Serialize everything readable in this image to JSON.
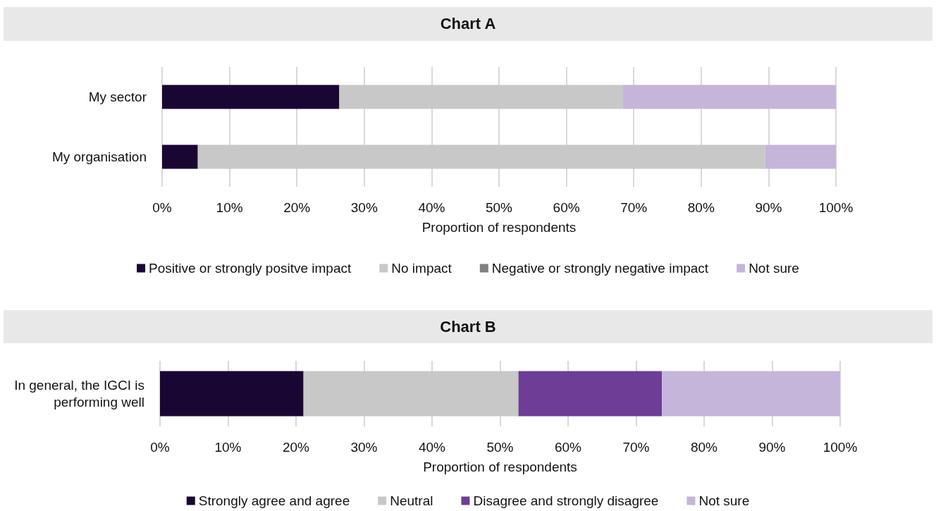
{
  "chart_data": [
    {
      "type": "bar",
      "title": "Chart A",
      "orientation": "horizontal",
      "stacked": true,
      "categories": [
        "My sector",
        "My organisation"
      ],
      "xlabel": "Proportion of respondents",
      "xlim": [
        0,
        100
      ],
      "xticks": [
        {
          "value": 0,
          "label": "0%"
        },
        {
          "value": 10,
          "label": "10%"
        },
        {
          "value": 20,
          "label": "20%"
        },
        {
          "value": 30,
          "label": "30%"
        },
        {
          "value": 40,
          "label": "40%"
        },
        {
          "value": 50,
          "label": "50%"
        },
        {
          "value": 60,
          "label": "60%"
        },
        {
          "value": 70,
          "label": "70%"
        },
        {
          "value": 80,
          "label": "80%"
        },
        {
          "value": 90,
          "label": "90%"
        },
        {
          "value": 100,
          "label": "100%"
        }
      ],
      "grid": "x",
      "legend": "bottom",
      "series": [
        {
          "name": "Positive or strongly positve impact",
          "color": "#1a0633",
          "values": [
            26.3,
            5.3
          ]
        },
        {
          "name": "No impact",
          "color": "#c8c8c8",
          "values": [
            42.1,
            84.2
          ]
        },
        {
          "name": "Negative or strongly negative impact",
          "color": "#808080",
          "values": [
            0,
            0
          ]
        },
        {
          "name": "Not sure",
          "color": "#c5b5da",
          "values": [
            31.6,
            10.5
          ]
        }
      ]
    },
    {
      "type": "bar",
      "title": "Chart B",
      "orientation": "horizontal",
      "stacked": true,
      "categories": [
        "In general, the IGCI is performing well"
      ],
      "xlabel": "Proportion of respondents",
      "xlim": [
        0,
        100
      ],
      "xticks": [
        {
          "value": 0,
          "label": "0%"
        },
        {
          "value": 10,
          "label": "10%"
        },
        {
          "value": 20,
          "label": "20%"
        },
        {
          "value": 30,
          "label": "30%"
        },
        {
          "value": 40,
          "label": "40%"
        },
        {
          "value": 50,
          "label": "50%"
        },
        {
          "value": 60,
          "label": "60%"
        },
        {
          "value": 70,
          "label": "70%"
        },
        {
          "value": 80,
          "label": "80%"
        },
        {
          "value": 90,
          "label": "90%"
        },
        {
          "value": 100,
          "label": "100%"
        }
      ],
      "grid": "x",
      "legend": "bottom",
      "series": [
        {
          "name": "Strongly agree and agree",
          "color": "#1a0633",
          "values": [
            21.1
          ]
        },
        {
          "name": "Neutral",
          "color": "#c8c8c8",
          "values": [
            31.6
          ]
        },
        {
          "name": "Disagree and strongly disagree",
          "color": "#6e3d96",
          "values": [
            21.1
          ]
        },
        {
          "name": "Not sure",
          "color": "#c5b5da",
          "values": [
            26.3
          ]
        }
      ]
    }
  ]
}
